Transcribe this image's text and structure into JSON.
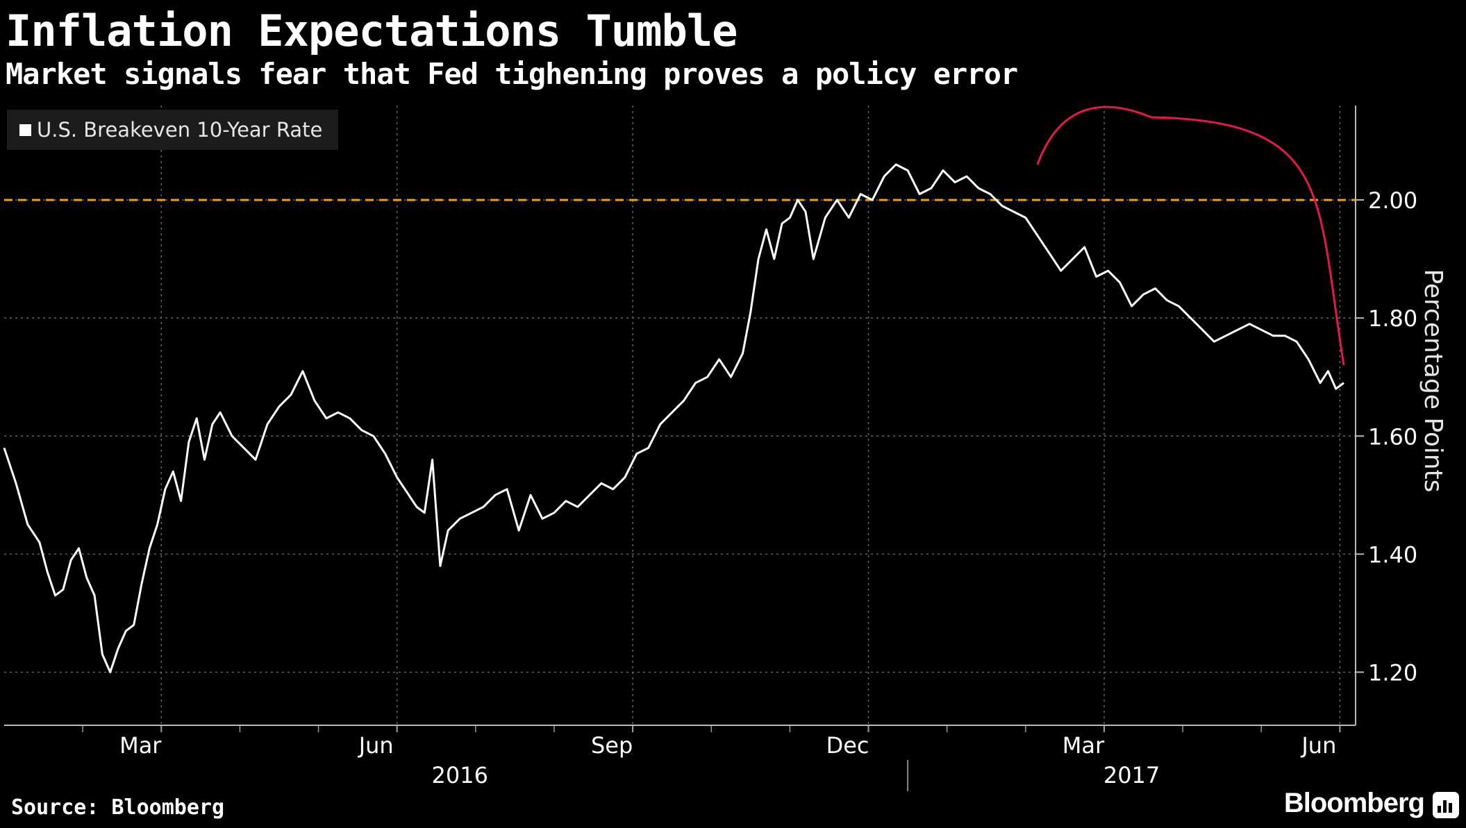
{
  "header": {
    "title": "Inflation Expectations Tumble",
    "subtitle": "Market signals fear that Fed tighening proves a policy error"
  },
  "footer": {
    "source": "Source: Bloomberg",
    "brand": "Bloomberg"
  },
  "colors": {
    "background": "#000000",
    "series": "#ffffff",
    "reference_line": "#f39c12",
    "annotation_arc": "#e8174a",
    "grid": "#666666"
  },
  "chart_data": {
    "type": "line",
    "title": "Inflation Expectations Tumble",
    "subtitle": "Market signals fear that Fed tighening proves a policy error",
    "ylabel": "Percentage Points",
    "xlabel": "",
    "ylim": [
      1.11,
      2.16
    ],
    "yticks": [
      1.2,
      1.4,
      1.6,
      1.8,
      2.0
    ],
    "ytick_labels": [
      "1.20",
      "1.40",
      "1.60",
      "1.80",
      "2.00"
    ],
    "y_axis_position": "right",
    "grid": true,
    "legend_position": "top-left",
    "xlim": [
      0,
      17.2
    ],
    "x_unit": "months since Jan 1, 2016",
    "month_ticks": [
      {
        "label": "Mar",
        "x": 2.0
      },
      {
        "label": "Jun",
        "x": 5.0
      },
      {
        "label": "Sep",
        "x": 8.0
      },
      {
        "label": "Dec",
        "x": 11.0
      },
      {
        "label": "Mar",
        "x": 14.0
      },
      {
        "label": "Jun",
        "x": 17.0
      }
    ],
    "year_labels": [
      {
        "label": "2016",
        "x": 5.8
      },
      {
        "label": "2017",
        "x": 14.35
      }
    ],
    "year_divider_x": 11.5,
    "reference_line": {
      "y": 2.0,
      "style": "dashed"
    },
    "annotation_arc": {
      "x_start": 13.15,
      "y_start": 2.06,
      "x_peak": 14.6,
      "y_peak": 2.14,
      "x_end": 17.05,
      "y_end": 1.72
    },
    "series": [
      {
        "name": "U.S. Breakeven 10-Year Rate",
        "x": [
          0.0,
          0.15,
          0.3,
          0.45,
          0.55,
          0.65,
          0.75,
          0.85,
          0.95,
          1.05,
          1.15,
          1.25,
          1.35,
          1.45,
          1.55,
          1.65,
          1.75,
          1.85,
          1.95,
          2.05,
          2.15,
          2.25,
          2.35,
          2.45,
          2.55,
          2.65,
          2.75,
          2.9,
          3.05,
          3.2,
          3.35,
          3.5,
          3.65,
          3.8,
          3.95,
          4.1,
          4.25,
          4.4,
          4.55,
          4.7,
          4.85,
          5.0,
          5.15,
          5.25,
          5.35,
          5.45,
          5.55,
          5.65,
          5.8,
          5.95,
          6.1,
          6.25,
          6.4,
          6.55,
          6.7,
          6.85,
          7.0,
          7.15,
          7.3,
          7.45,
          7.6,
          7.75,
          7.9,
          8.05,
          8.2,
          8.35,
          8.5,
          8.65,
          8.8,
          8.95,
          9.1,
          9.25,
          9.4,
          9.5,
          9.6,
          9.7,
          9.8,
          9.9,
          10.0,
          10.1,
          10.2,
          10.3,
          10.45,
          10.6,
          10.75,
          10.9,
          11.05,
          11.2,
          11.35,
          11.5,
          11.65,
          11.8,
          11.95,
          12.1,
          12.25,
          12.4,
          12.55,
          12.7,
          12.85,
          13.0,
          13.15,
          13.3,
          13.45,
          13.6,
          13.75,
          13.9,
          14.05,
          14.2,
          14.35,
          14.5,
          14.65,
          14.8,
          14.95,
          15.1,
          15.25,
          15.4,
          15.55,
          15.7,
          15.85,
          16.0,
          16.15,
          16.3,
          16.45,
          16.6,
          16.75,
          16.85,
          16.95,
          17.05
        ],
        "values": [
          1.58,
          1.52,
          1.45,
          1.42,
          1.37,
          1.33,
          1.34,
          1.39,
          1.41,
          1.36,
          1.33,
          1.23,
          1.2,
          1.24,
          1.27,
          1.28,
          1.35,
          1.41,
          1.45,
          1.51,
          1.54,
          1.49,
          1.59,
          1.63,
          1.56,
          1.62,
          1.64,
          1.6,
          1.58,
          1.56,
          1.62,
          1.65,
          1.67,
          1.71,
          1.66,
          1.63,
          1.64,
          1.63,
          1.61,
          1.6,
          1.57,
          1.53,
          1.5,
          1.48,
          1.47,
          1.56,
          1.38,
          1.44,
          1.46,
          1.47,
          1.48,
          1.5,
          1.51,
          1.44,
          1.5,
          1.46,
          1.47,
          1.49,
          1.48,
          1.5,
          1.52,
          1.51,
          1.53,
          1.57,
          1.58,
          1.62,
          1.64,
          1.66,
          1.69,
          1.7,
          1.73,
          1.7,
          1.74,
          1.81,
          1.9,
          1.95,
          1.9,
          1.96,
          1.97,
          2.0,
          1.98,
          1.9,
          1.97,
          2.0,
          1.97,
          2.01,
          2.0,
          2.04,
          2.06,
          2.05,
          2.01,
          2.02,
          2.05,
          2.03,
          2.04,
          2.02,
          2.01,
          1.99,
          1.98,
          1.97,
          1.94,
          1.91,
          1.88,
          1.9,
          1.92,
          1.87,
          1.88,
          1.86,
          1.82,
          1.84,
          1.85,
          1.83,
          1.82,
          1.8,
          1.78,
          1.76,
          1.77,
          1.78,
          1.79,
          1.78,
          1.77,
          1.77,
          1.76,
          1.73,
          1.69,
          1.71,
          1.68,
          1.69
        ]
      }
    ]
  }
}
